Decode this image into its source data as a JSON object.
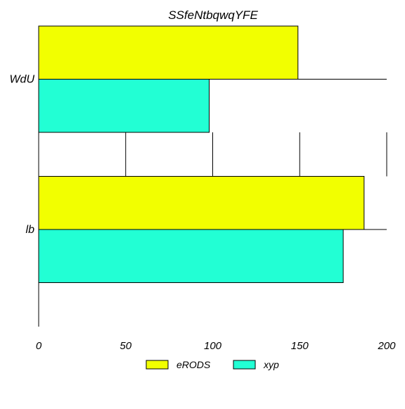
{
  "chart_data": {
    "type": "bar",
    "orientation": "horizontal",
    "title": "SSfeNtbqwqYFE",
    "xlabel": "",
    "ylabel": "",
    "categories": [
      "WdU",
      "lb"
    ],
    "series": [
      {
        "name": "eRODS",
        "values": [
          149,
          187
        ],
        "color": "#f2ff00"
      },
      {
        "name": "xyp",
        "values": [
          98,
          175
        ],
        "color": "#22ffd4"
      }
    ],
    "xlim": [
      0,
      200
    ],
    "xticks": [
      "0",
      "50",
      "100",
      "150",
      "200"
    ],
    "grid": true,
    "legend": "bottom"
  }
}
